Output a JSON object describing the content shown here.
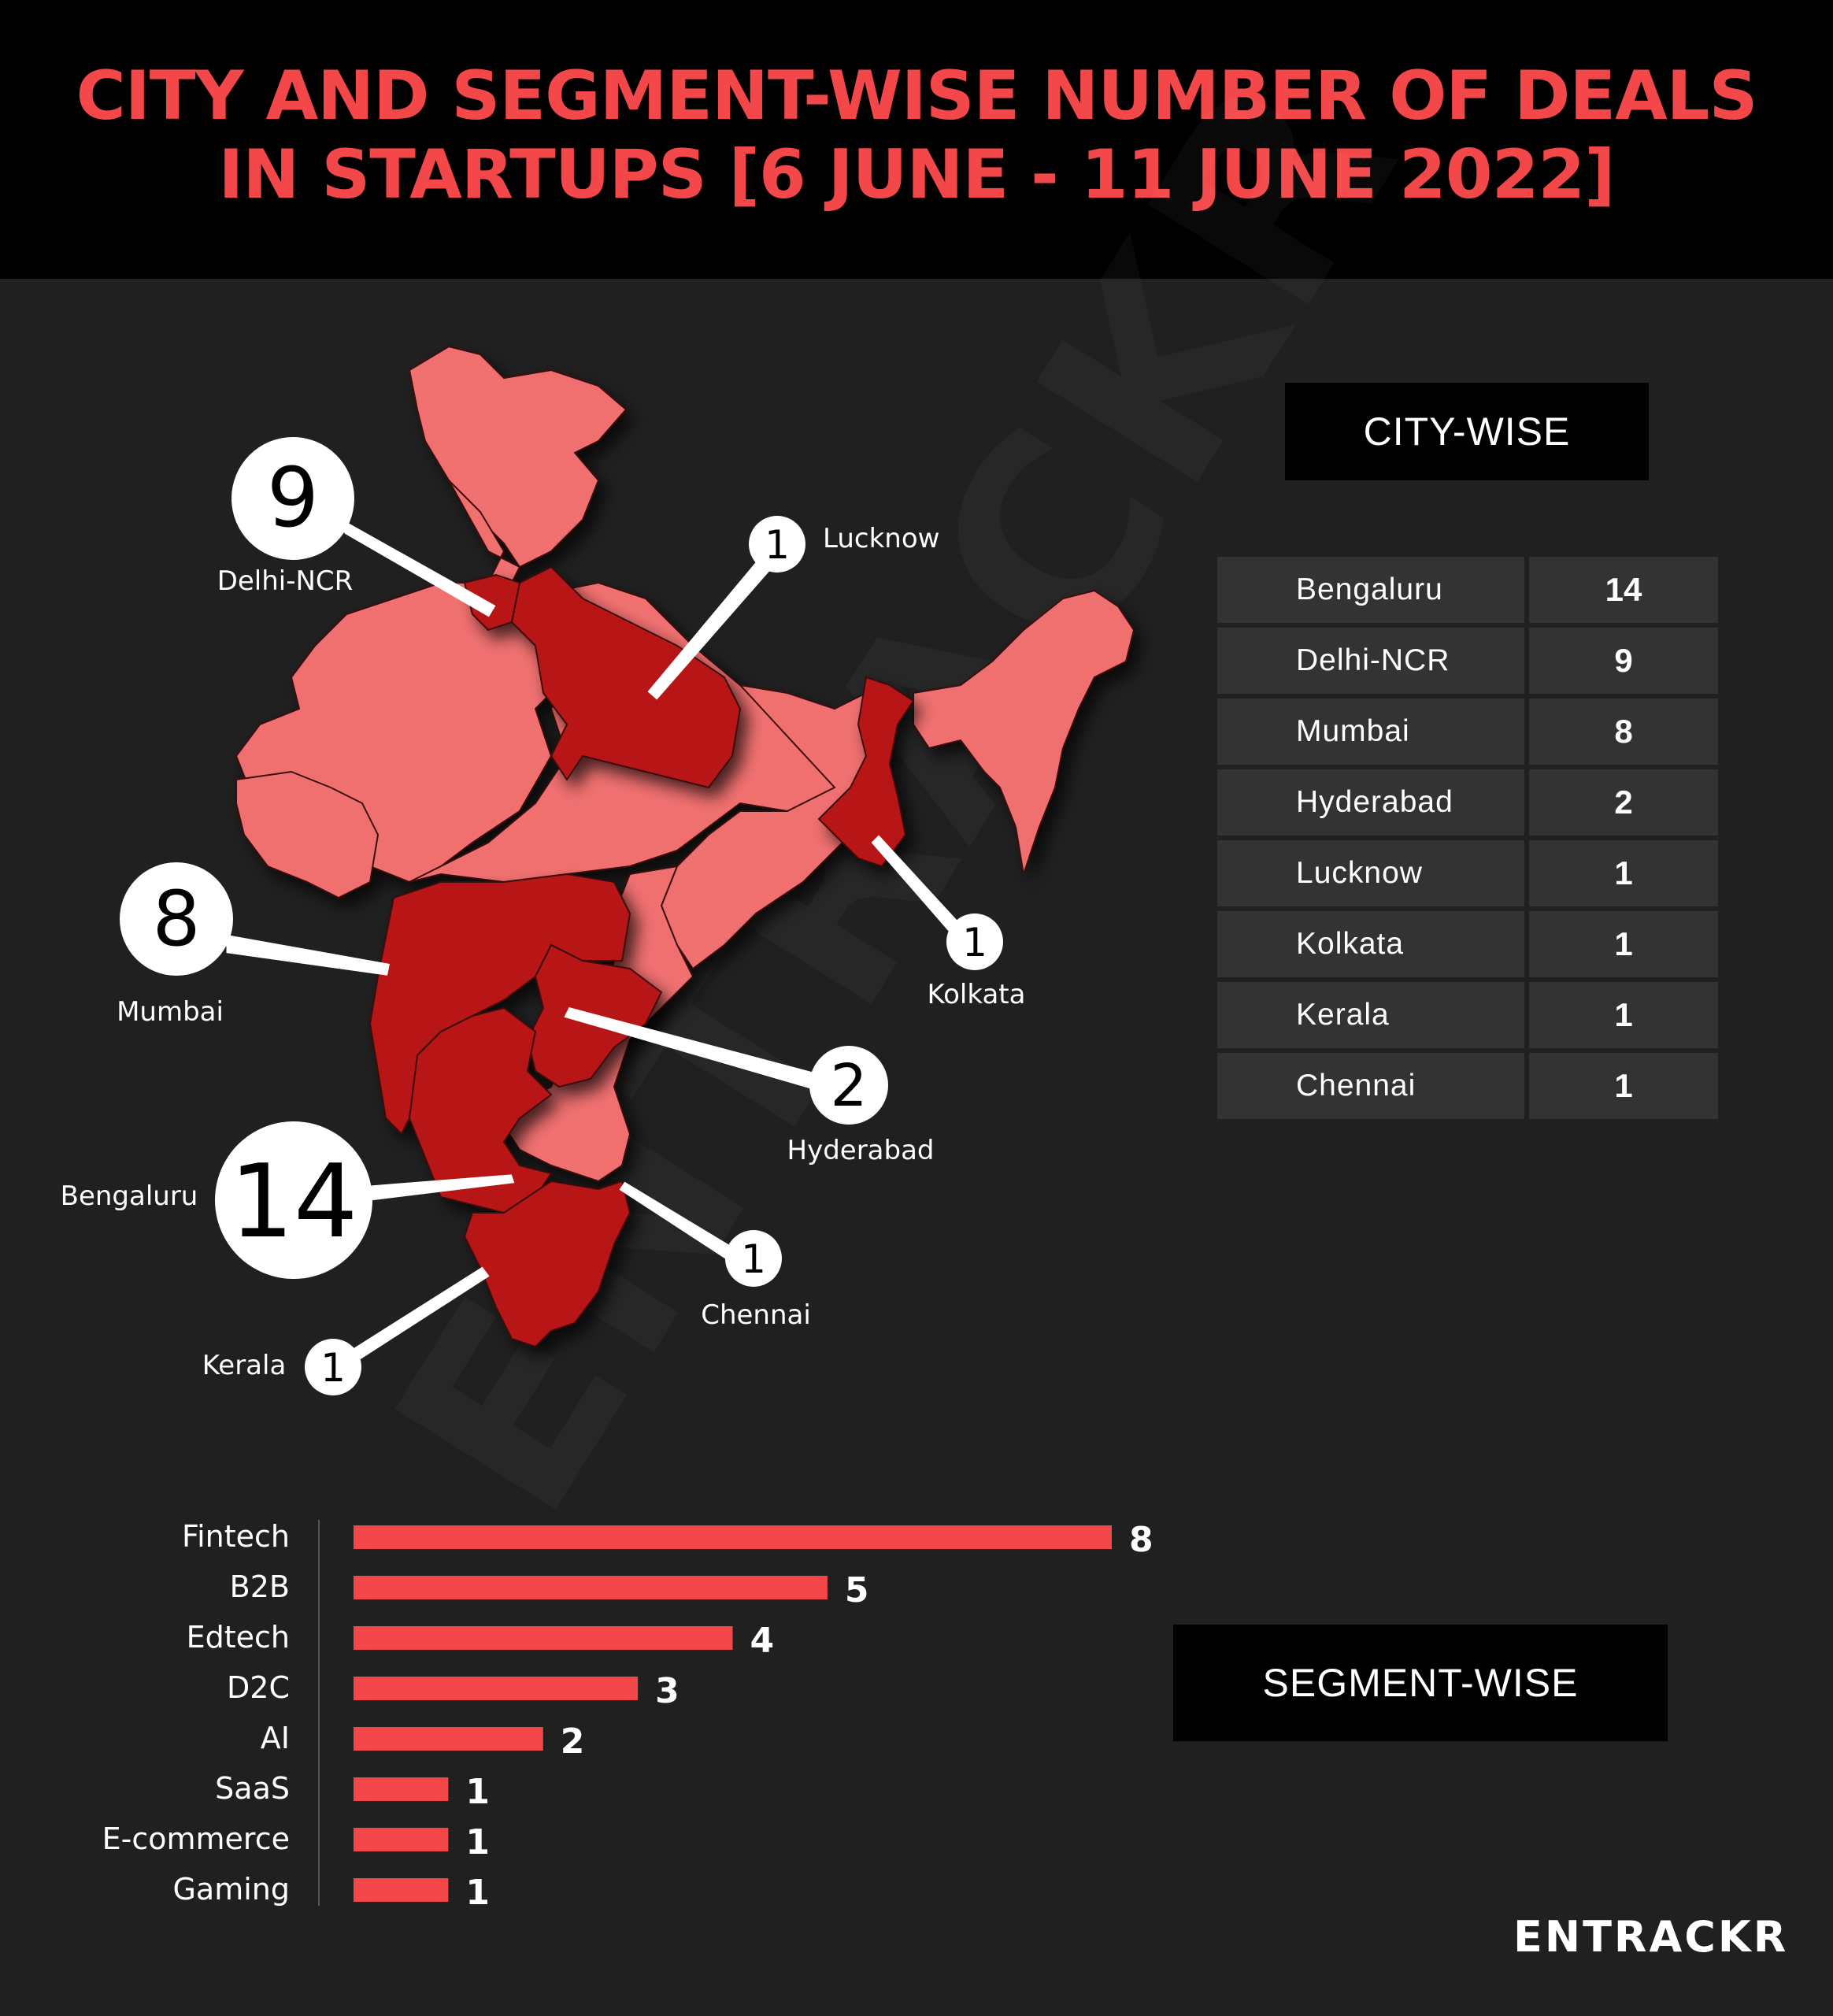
{
  "title": {
    "line1": "CITY AND SEGMENT-WISE NUMBER OF DEALS",
    "line2": "IN STARTUPS [6 JUNE - 11 JUNE 2022]"
  },
  "watermark": "ENTRACKR",
  "logo": "ENTRACKR",
  "colors": {
    "background": "#202020",
    "title": "#f4474a",
    "map_light": "#f07070",
    "map_dark": "#b81818",
    "bar": "#f4474a"
  },
  "map_callouts": [
    {
      "city": "Delhi-NCR",
      "value": "9"
    },
    {
      "city": "Lucknow",
      "value": "1"
    },
    {
      "city": "Mumbai",
      "value": "8"
    },
    {
      "city": "Kolkata",
      "value": "1"
    },
    {
      "city": "Hyderabad",
      "value": "2"
    },
    {
      "city": "Bengaluru",
      "value": "14"
    },
    {
      "city": "Chennai",
      "value": "1"
    },
    {
      "city": "Kerala",
      "value": "1"
    }
  ],
  "city_wise": {
    "heading": "CITY-WISE",
    "rows": [
      {
        "city": "Bengaluru",
        "deals": "14"
      },
      {
        "city": "Delhi-NCR",
        "deals": "9"
      },
      {
        "city": "Mumbai",
        "deals": "8"
      },
      {
        "city": "Hyderabad",
        "deals": "2"
      },
      {
        "city": "Lucknow",
        "deals": "1"
      },
      {
        "city": "Kolkata",
        "deals": "1"
      },
      {
        "city": "Kerala",
        "deals": "1"
      },
      {
        "city": "Chennai",
        "deals": "1"
      }
    ]
  },
  "segment_wise": {
    "heading": "SEGMENT-WISE"
  },
  "chart_data": {
    "type": "bar",
    "orientation": "horizontal",
    "categories": [
      "Fintech",
      "B2B",
      "Edtech",
      "D2C",
      "AI",
      "SaaS",
      "E-commerce",
      "Gaming"
    ],
    "values": [
      8,
      5,
      4,
      3,
      2,
      1,
      1,
      1
    ],
    "title": "",
    "xlabel": "",
    "ylabel": "",
    "xlim": [
      0,
      8
    ],
    "grid": false,
    "legend": "none"
  }
}
